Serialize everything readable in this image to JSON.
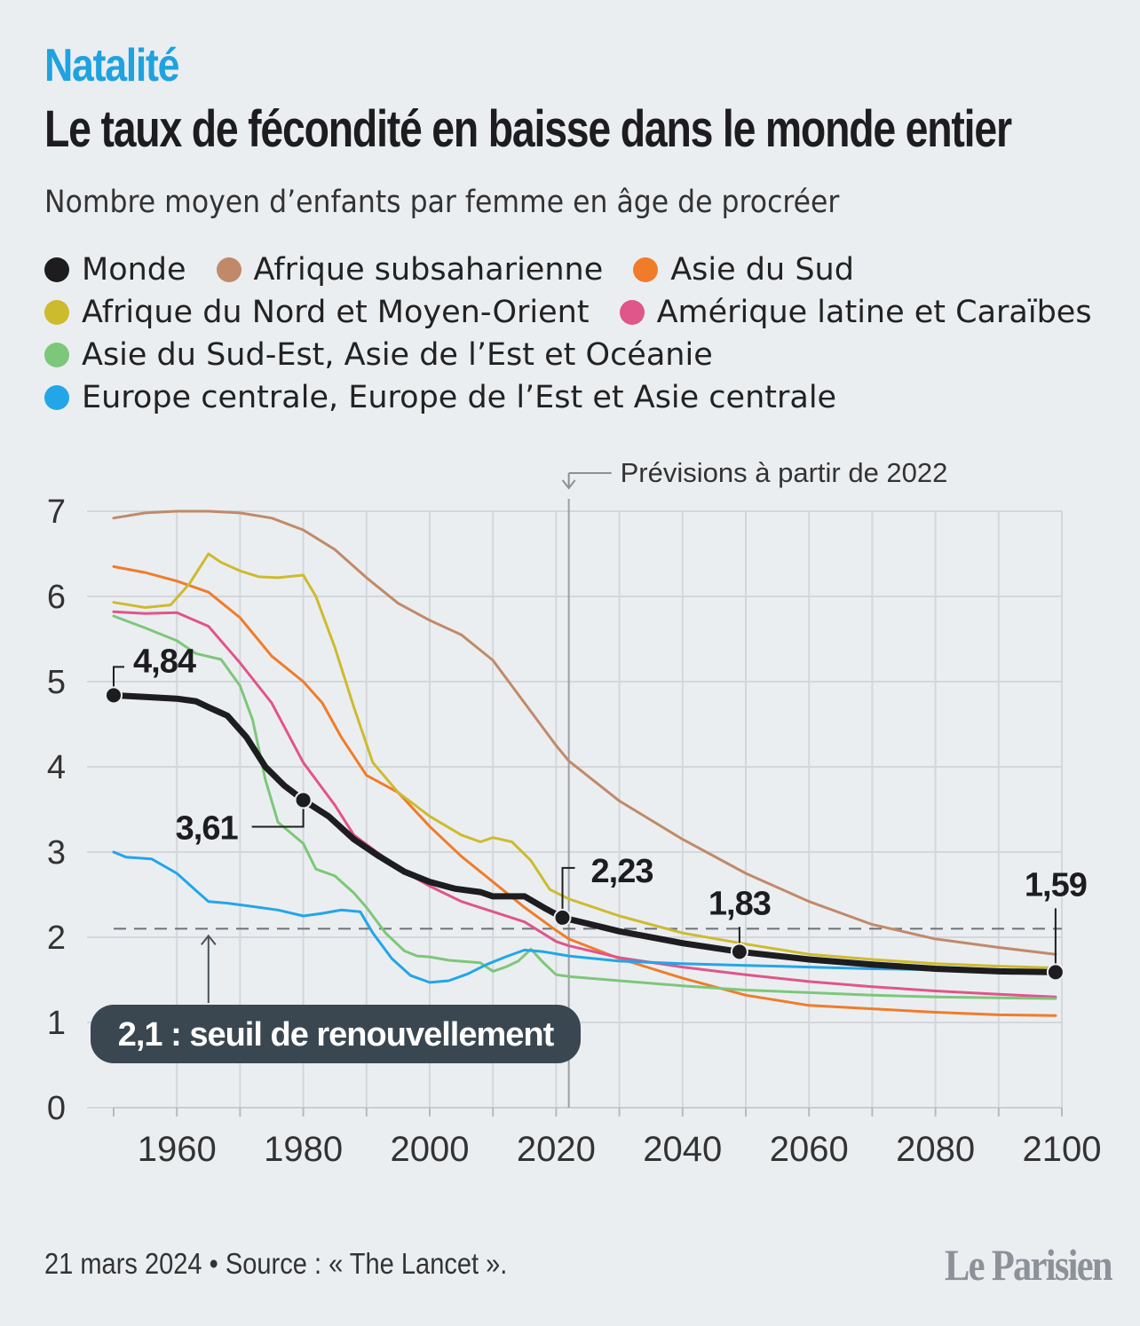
{
  "header": {
    "kicker": "Natalité",
    "title": "Le taux de fécondité en baisse dans le monde entier",
    "subtitle": "Nombre moyen d’enfants par femme en âge de procréer"
  },
  "legend_rows": [
    [
      {
        "label": "Monde",
        "color": "#1d1d1f"
      },
      {
        "label": "Afrique subsaharienne",
        "color": "#c08a6a"
      },
      {
        "label": "Asie du Sud",
        "color": "#f07c2a"
      }
    ],
    [
      {
        "label": "Afrique du Nord et Moyen-Orient",
        "color": "#cdbb2e"
      },
      {
        "label": "Amérique latine et Caraïbes",
        "color": "#e0558a"
      }
    ],
    [
      {
        "label": "Asie du Sud-Est, Asie de l’Est et Océanie",
        "color": "#7dc77a"
      }
    ],
    [
      {
        "label": "Europe centrale, Europe de l’Est et Asie centrale",
        "color": "#22a6e8"
      }
    ]
  ],
  "chart_data": {
    "type": "line",
    "xlim": [
      1950,
      2100
    ],
    "ylim": [
      0,
      7
    ],
    "x_ticks": [
      1960,
      1980,
      2000,
      2020,
      2040,
      2060,
      2080,
      2100
    ],
    "y_ticks": [
      0,
      1,
      2,
      3,
      4,
      5,
      6,
      7
    ],
    "grid": true,
    "forecast_year": 2022,
    "forecast_label": "Prévisions à partir de 2022",
    "replacement_level": 2.1,
    "replacement_label": "2,1 : seuil de renouvellement",
    "series": [
      {
        "name": "Afrique subsaharienne",
        "color": "#c08a6a",
        "width": 3,
        "points": [
          [
            1950,
            6.92
          ],
          [
            1955,
            6.98
          ],
          [
            1960,
            7.0
          ],
          [
            1965,
            7.0
          ],
          [
            1970,
            6.98
          ],
          [
            1975,
            6.92
          ],
          [
            1980,
            6.78
          ],
          [
            1985,
            6.55
          ],
          [
            1990,
            6.22
          ],
          [
            1995,
            5.92
          ],
          [
            2000,
            5.72
          ],
          [
            2005,
            5.55
          ],
          [
            2010,
            5.25
          ],
          [
            2015,
            4.75
          ],
          [
            2020,
            4.25
          ],
          [
            2022,
            4.07
          ],
          [
            2030,
            3.6
          ],
          [
            2040,
            3.15
          ],
          [
            2050,
            2.75
          ],
          [
            2060,
            2.42
          ],
          [
            2070,
            2.15
          ],
          [
            2080,
            1.98
          ],
          [
            2090,
            1.88
          ],
          [
            2099,
            1.8
          ]
        ]
      },
      {
        "name": "Asie du Sud",
        "color": "#f07c2a",
        "width": 3,
        "points": [
          [
            1950,
            6.35
          ],
          [
            1955,
            6.28
          ],
          [
            1960,
            6.18
          ],
          [
            1965,
            6.05
          ],
          [
            1970,
            5.75
          ],
          [
            1975,
            5.3
          ],
          [
            1980,
            5.0
          ],
          [
            1983,
            4.75
          ],
          [
            1986,
            4.35
          ],
          [
            1990,
            3.9
          ],
          [
            1995,
            3.7
          ],
          [
            2000,
            3.3
          ],
          [
            2005,
            2.95
          ],
          [
            2010,
            2.65
          ],
          [
            2015,
            2.35
          ],
          [
            2020,
            2.08
          ],
          [
            2022,
            1.98
          ],
          [
            2030,
            1.75
          ],
          [
            2040,
            1.52
          ],
          [
            2050,
            1.32
          ],
          [
            2060,
            1.2
          ],
          [
            2070,
            1.16
          ],
          [
            2080,
            1.12
          ],
          [
            2090,
            1.09
          ],
          [
            2099,
            1.08
          ]
        ]
      },
      {
        "name": "Afrique du Nord et Moyen-Orient",
        "color": "#cdbb2e",
        "width": 3,
        "points": [
          [
            1950,
            5.93
          ],
          [
            1955,
            5.87
          ],
          [
            1959,
            5.9
          ],
          [
            1962,
            6.15
          ],
          [
            1965,
            6.5
          ],
          [
            1967,
            6.4
          ],
          [
            1970,
            6.3
          ],
          [
            1973,
            6.23
          ],
          [
            1976,
            6.22
          ],
          [
            1980,
            6.25
          ],
          [
            1982,
            6.0
          ],
          [
            1985,
            5.4
          ],
          [
            1988,
            4.7
          ],
          [
            1991,
            4.05
          ],
          [
            1995,
            3.7
          ],
          [
            2000,
            3.42
          ],
          [
            2005,
            3.2
          ],
          [
            2008,
            3.12
          ],
          [
            2010,
            3.17
          ],
          [
            2013,
            3.12
          ],
          [
            2016,
            2.9
          ],
          [
            2019,
            2.56
          ],
          [
            2022,
            2.45
          ],
          [
            2030,
            2.25
          ],
          [
            2040,
            2.05
          ],
          [
            2050,
            1.92
          ],
          [
            2060,
            1.8
          ],
          [
            2070,
            1.74
          ],
          [
            2080,
            1.69
          ],
          [
            2090,
            1.66
          ],
          [
            2099,
            1.64
          ]
        ]
      },
      {
        "name": "Amérique latine et Caraïbes",
        "color": "#e0558a",
        "width": 3,
        "points": [
          [
            1950,
            5.82
          ],
          [
            1955,
            5.8
          ],
          [
            1960,
            5.81
          ],
          [
            1965,
            5.65
          ],
          [
            1970,
            5.22
          ],
          [
            1975,
            4.75
          ],
          [
            1980,
            4.05
          ],
          [
            1985,
            3.55
          ],
          [
            1988,
            3.2
          ],
          [
            1992,
            2.98
          ],
          [
            1996,
            2.77
          ],
          [
            2000,
            2.6
          ],
          [
            2005,
            2.42
          ],
          [
            2010,
            2.3
          ],
          [
            2015,
            2.18
          ],
          [
            2020,
            1.95
          ],
          [
            2022,
            1.9
          ],
          [
            2030,
            1.76
          ],
          [
            2040,
            1.65
          ],
          [
            2050,
            1.56
          ],
          [
            2060,
            1.48
          ],
          [
            2070,
            1.42
          ],
          [
            2080,
            1.37
          ],
          [
            2090,
            1.33
          ],
          [
            2099,
            1.3
          ]
        ]
      },
      {
        "name": "Asie du Sud-Est, Asie de l’Est et Océanie",
        "color": "#7dc77a",
        "width": 3,
        "points": [
          [
            1950,
            5.77
          ],
          [
            1955,
            5.63
          ],
          [
            1960,
            5.48
          ],
          [
            1963,
            5.33
          ],
          [
            1967,
            5.26
          ],
          [
            1970,
            4.95
          ],
          [
            1972,
            4.55
          ],
          [
            1974,
            3.85
          ],
          [
            1976,
            3.35
          ],
          [
            1980,
            3.1
          ],
          [
            1982,
            2.8
          ],
          [
            1985,
            2.72
          ],
          [
            1988,
            2.52
          ],
          [
            1990,
            2.35
          ],
          [
            1993,
            2.05
          ],
          [
            1996,
            1.84
          ],
          [
            1998,
            1.78
          ],
          [
            2000,
            1.77
          ],
          [
            2003,
            1.73
          ],
          [
            2008,
            1.7
          ],
          [
            2010,
            1.6
          ],
          [
            2012,
            1.65
          ],
          [
            2014,
            1.72
          ],
          [
            2016,
            1.86
          ],
          [
            2018,
            1.7
          ],
          [
            2020,
            1.56
          ],
          [
            2022,
            1.54
          ],
          [
            2030,
            1.49
          ],
          [
            2040,
            1.43
          ],
          [
            2050,
            1.38
          ],
          [
            2060,
            1.35
          ],
          [
            2070,
            1.32
          ],
          [
            2080,
            1.3
          ],
          [
            2090,
            1.29
          ],
          [
            2099,
            1.28
          ]
        ]
      },
      {
        "name": "Europe centrale, Europe de l’Est et Asie centrale",
        "color": "#22a6e8",
        "width": 3,
        "points": [
          [
            1950,
            3.0
          ],
          [
            1952,
            2.94
          ],
          [
            1956,
            2.92
          ],
          [
            1960,
            2.75
          ],
          [
            1963,
            2.55
          ],
          [
            1965,
            2.42
          ],
          [
            1968,
            2.4
          ],
          [
            1972,
            2.36
          ],
          [
            1976,
            2.32
          ],
          [
            1980,
            2.25
          ],
          [
            1983,
            2.28
          ],
          [
            1986,
            2.32
          ],
          [
            1989,
            2.3
          ],
          [
            1991,
            2.05
          ],
          [
            1994,
            1.75
          ],
          [
            1997,
            1.55
          ],
          [
            2000,
            1.47
          ],
          [
            2003,
            1.49
          ],
          [
            2006,
            1.57
          ],
          [
            2009,
            1.68
          ],
          [
            2012,
            1.77
          ],
          [
            2015,
            1.85
          ],
          [
            2018,
            1.83
          ],
          [
            2022,
            1.78
          ],
          [
            2030,
            1.72
          ],
          [
            2040,
            1.69
          ],
          [
            2050,
            1.67
          ],
          [
            2060,
            1.65
          ],
          [
            2070,
            1.63
          ],
          [
            2080,
            1.62
          ],
          [
            2090,
            1.61
          ],
          [
            2099,
            1.6
          ]
        ]
      },
      {
        "name": "Monde",
        "color": "#1d1d1f",
        "width": 7,
        "points": [
          [
            1950,
            4.84
          ],
          [
            1955,
            4.82
          ],
          [
            1960,
            4.8
          ],
          [
            1963,
            4.77
          ],
          [
            1965,
            4.7
          ],
          [
            1968,
            4.6
          ],
          [
            1971,
            4.35
          ],
          [
            1974,
            4.0
          ],
          [
            1977,
            3.78
          ],
          [
            1980,
            3.61
          ],
          [
            1984,
            3.42
          ],
          [
            1988,
            3.15
          ],
          [
            1992,
            2.95
          ],
          [
            1996,
            2.77
          ],
          [
            2000,
            2.65
          ],
          [
            2004,
            2.57
          ],
          [
            2008,
            2.53
          ],
          [
            2010,
            2.48
          ],
          [
            2015,
            2.48
          ],
          [
            2018,
            2.35
          ],
          [
            2021,
            2.23
          ],
          [
            2025,
            2.16
          ],
          [
            2030,
            2.07
          ],
          [
            2040,
            1.93
          ],
          [
            2049,
            1.83
          ],
          [
            2060,
            1.74
          ],
          [
            2070,
            1.68
          ],
          [
            2080,
            1.63
          ],
          [
            2090,
            1.6
          ],
          [
            2099,
            1.59
          ]
        ]
      }
    ],
    "annotations": [
      {
        "year": 1950,
        "value": 4.84,
        "label": "4,84"
      },
      {
        "year": 1980,
        "value": 3.61,
        "label": "3,61"
      },
      {
        "year": 2021,
        "value": 2.23,
        "label": "2,23"
      },
      {
        "year": 2049,
        "value": 1.83,
        "label": "1,83"
      },
      {
        "year": 2099,
        "value": 1.59,
        "label": "1,59"
      }
    ]
  },
  "footer": {
    "source": "21 mars 2024 • Source : « The Lancet ».",
    "logo": "Le Parisien"
  }
}
